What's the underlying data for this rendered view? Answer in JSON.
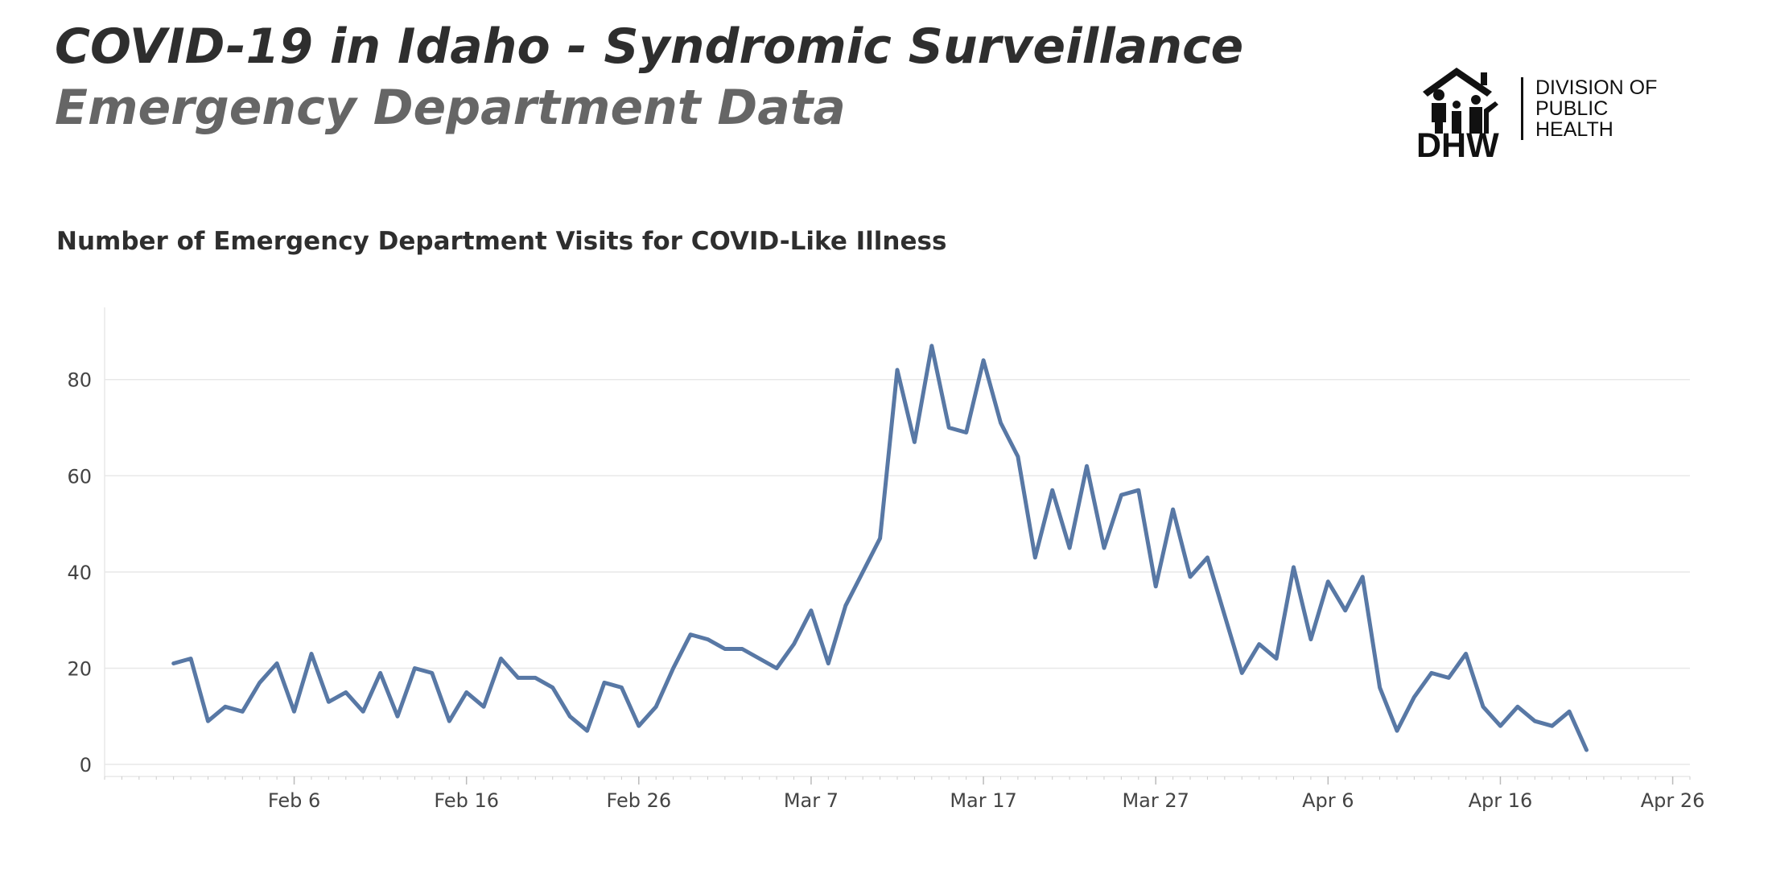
{
  "header": {
    "title": "COVID-19 in Idaho - Syndromic Surveillance",
    "subtitle": "Emergency Department Data"
  },
  "logo": {
    "mark": "DHW",
    "lines": [
      "DIVISION OF",
      "PUBLIC",
      "HEALTH"
    ],
    "icon": "house-with-family-icon"
  },
  "colors": {
    "line": "#5878a5",
    "grid": "#e8e8e8",
    "title": "#2e2e2e",
    "subtitle": "#666666"
  },
  "chart_data": {
    "type": "line",
    "title": "Number of Emergency Department Visits for COVID-Like Illness",
    "xlabel": "",
    "ylabel": "",
    "x_start": "2020-01-30",
    "x_end": "2020-04-22",
    "xlim": [
      "2020-01-26",
      "2020-04-27"
    ],
    "ylim": [
      -2.5,
      95
    ],
    "grid": true,
    "legend": "none",
    "xticks": [
      {
        "date": "2020-02-06",
        "label": "Feb 6"
      },
      {
        "date": "2020-02-16",
        "label": "Feb 16"
      },
      {
        "date": "2020-02-26",
        "label": "Feb 26"
      },
      {
        "date": "2020-03-07",
        "label": "Mar 7"
      },
      {
        "date": "2020-03-17",
        "label": "Mar 17"
      },
      {
        "date": "2020-03-27",
        "label": "Mar 27"
      },
      {
        "date": "2020-04-06",
        "label": "Apr 6"
      },
      {
        "date": "2020-04-16",
        "label": "Apr 16"
      },
      {
        "date": "2020-04-26",
        "label": "Apr 26"
      }
    ],
    "yticks": [
      0,
      20,
      40,
      60,
      80
    ],
    "series": [
      {
        "values": [
          21,
          22,
          9,
          12,
          11,
          17,
          21,
          11,
          23,
          13,
          15,
          11,
          19,
          10,
          20,
          19,
          9,
          15,
          12,
          22,
          18,
          18,
          16,
          10,
          7,
          17,
          16,
          8,
          12,
          20,
          27,
          26,
          24,
          24,
          22,
          20,
          25,
          32,
          21,
          33,
          40,
          47,
          82,
          67,
          87,
          70,
          69,
          84,
          71,
          64,
          43,
          57,
          45,
          62,
          45,
          56,
          57,
          37,
          53,
          39,
          43,
          31,
          19,
          25,
          22,
          41,
          26,
          38,
          32,
          39,
          16,
          7,
          14,
          19,
          18,
          23,
          12,
          8,
          12,
          9,
          8,
          11,
          3
        ]
      }
    ]
  }
}
